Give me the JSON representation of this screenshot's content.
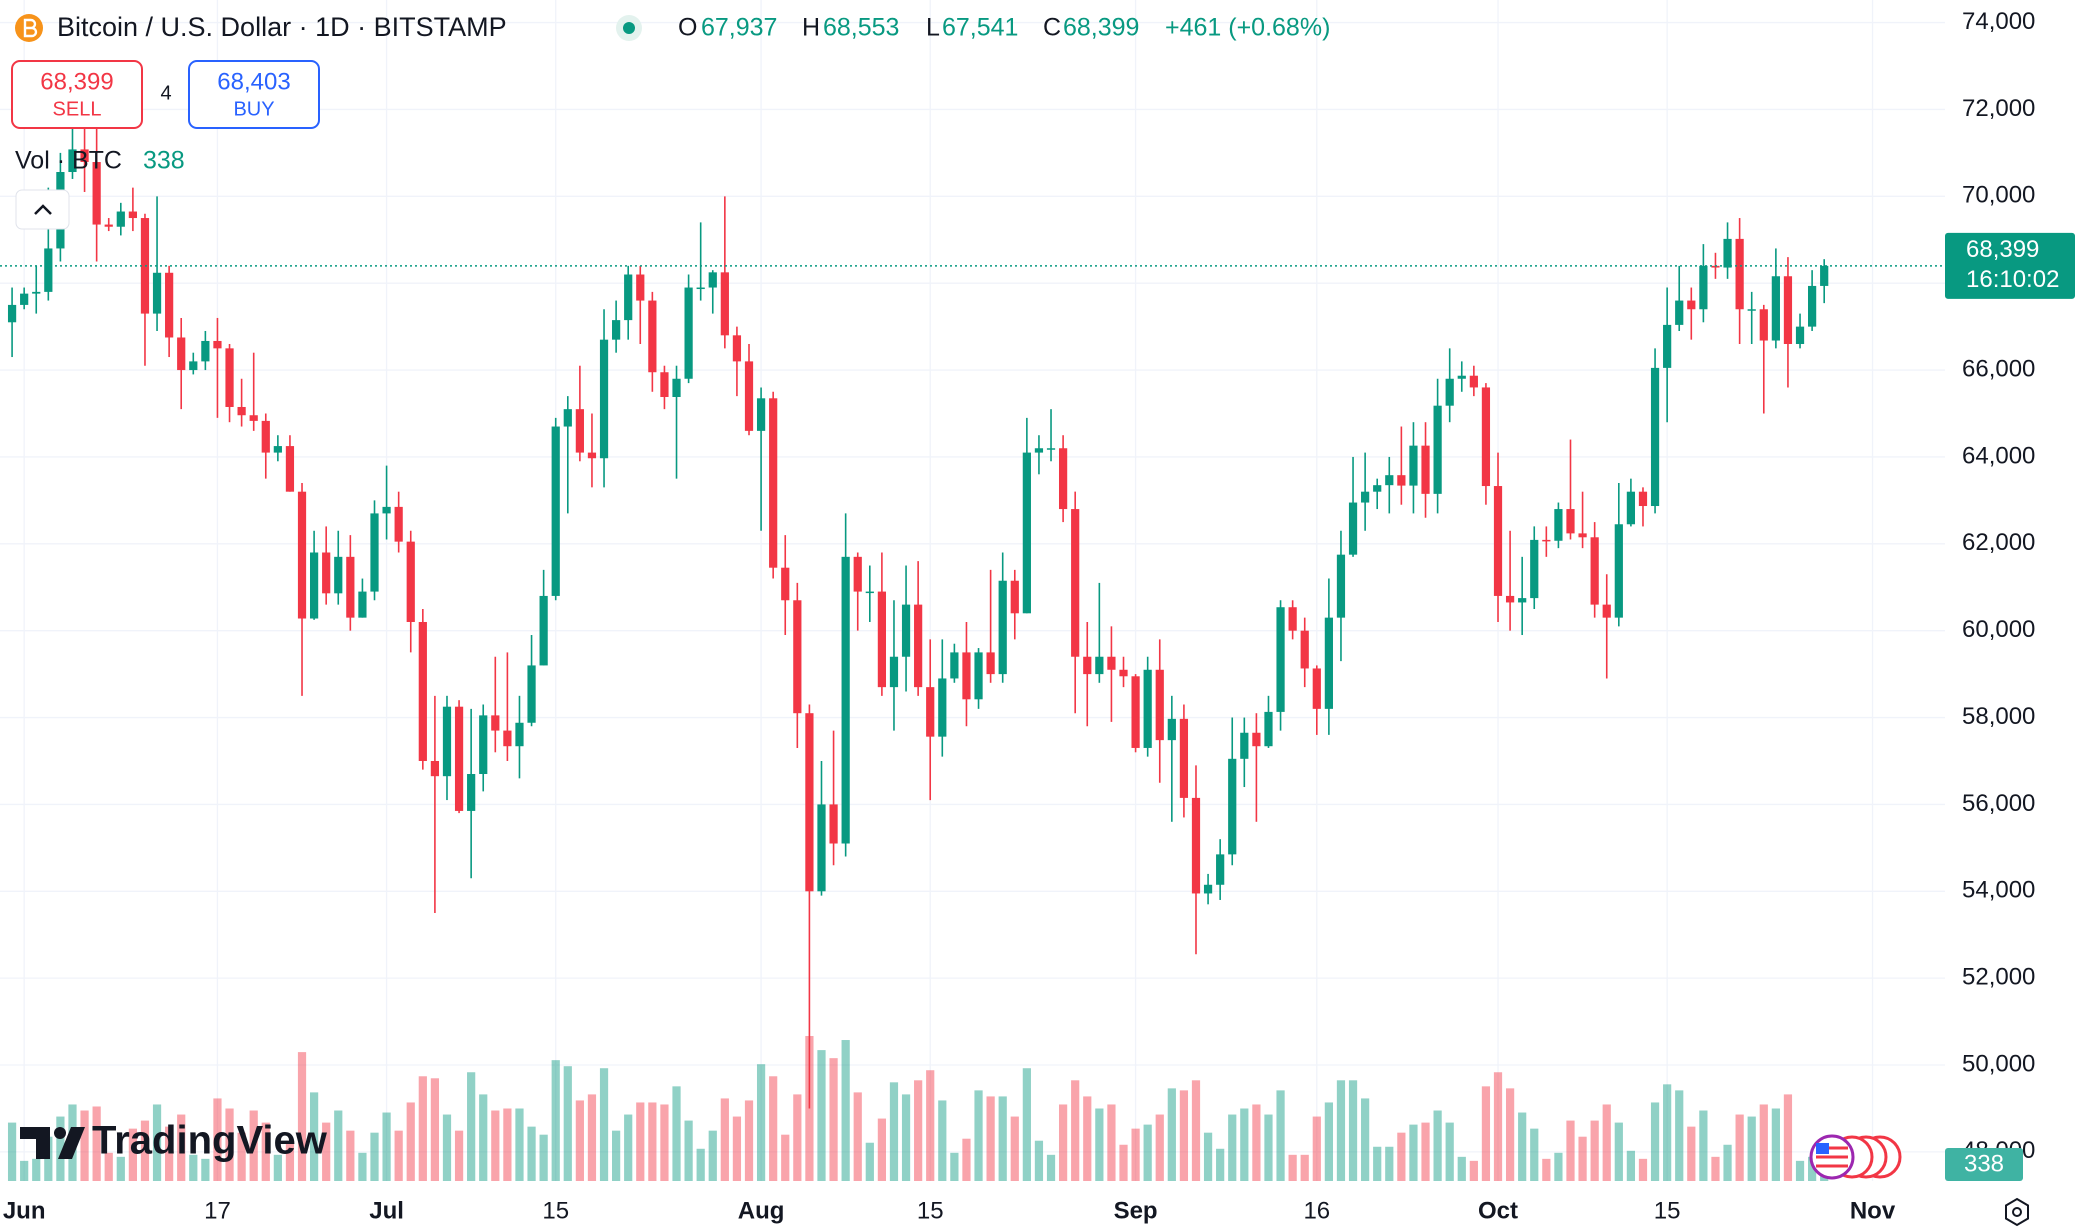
{
  "ui": {
    "title": "Bitcoin / U.S. Dollar · 1D · BITSTAMP",
    "ohlc": {
      "o_key": "O",
      "o": "67,937",
      "h_key": "H",
      "h": "68,553",
      "l_key": "L",
      "l": "67,541",
      "c_key": "C",
      "c": "68,399",
      "change": "+461 (+0.68%)"
    },
    "sell": {
      "price": "68,399",
      "label": "SELL"
    },
    "spread": "4",
    "buy": {
      "price": "68,403",
      "label": "BUY"
    },
    "volume_label": "Vol · BTC",
    "last_price": "68,399",
    "countdown": "16:10:02",
    "brand": "TradingView"
  },
  "chart_data": {
    "type": "candlestick",
    "x": [
      "05-31",
      "06-01",
      "06-02",
      "06-03",
      "06-04",
      "06-05",
      "06-06",
      "06-07",
      "06-08",
      "06-09",
      "06-10",
      "06-11",
      "06-12",
      "06-13",
      "06-14",
      "06-15",
      "06-16",
      "06-17",
      "06-18",
      "06-19",
      "06-20",
      "06-21",
      "06-22",
      "06-23",
      "06-24",
      "06-25",
      "06-26",
      "06-27",
      "06-28",
      "06-29",
      "06-30",
      "07-01",
      "07-02",
      "07-03",
      "07-04",
      "07-05",
      "07-06",
      "07-07",
      "07-08",
      "07-09",
      "07-10",
      "07-11",
      "07-12",
      "07-13",
      "07-14",
      "07-15",
      "07-16",
      "07-17",
      "07-18",
      "07-19",
      "07-20",
      "07-21",
      "07-22",
      "07-23",
      "07-24",
      "07-25",
      "07-26",
      "07-27",
      "07-28",
      "07-29",
      "07-30",
      "07-31",
      "08-01",
      "08-02",
      "08-03",
      "08-04",
      "08-05",
      "08-06",
      "08-07",
      "08-08",
      "08-09",
      "08-10",
      "08-11",
      "08-12",
      "08-13",
      "08-14",
      "08-15",
      "08-16",
      "08-17",
      "08-18",
      "08-19",
      "08-20",
      "08-21",
      "08-22",
      "08-23",
      "08-24",
      "08-25",
      "08-26",
      "08-27",
      "08-28",
      "08-29",
      "08-30",
      "08-31",
      "09-01",
      "09-02",
      "09-03",
      "09-04",
      "09-05",
      "09-06",
      "09-07",
      "09-08",
      "09-09",
      "09-10",
      "09-11",
      "09-12",
      "09-13",
      "09-14",
      "09-15",
      "09-16",
      "09-17",
      "09-18",
      "09-19",
      "09-20",
      "09-21",
      "09-22",
      "09-23",
      "09-24",
      "09-25",
      "09-26",
      "09-27",
      "09-28",
      "09-29",
      "09-30",
      "10-01",
      "10-02",
      "10-03",
      "10-04",
      "10-05",
      "10-06",
      "10-07",
      "10-08",
      "10-09",
      "10-10",
      "10-11",
      "10-12",
      "10-13",
      "10-14",
      "10-15",
      "10-16",
      "10-17",
      "10-18",
      "10-19",
      "10-20",
      "10-21",
      "10-22",
      "10-23",
      "10-24",
      "10-25",
      "10-26",
      "10-27",
      "10-28"
    ],
    "open": [
      67100,
      67500,
      67760,
      67800,
      68800,
      70560,
      71080,
      70790,
      69350,
      69300,
      69650,
      69500,
      67300,
      68240,
      66750,
      66000,
      66200,
      66670,
      66500,
      65150,
      64960,
      64830,
      64100,
      64250,
      63200,
      60280,
      61800,
      60860,
      61700,
      60300,
      60900,
      62700,
      62850,
      62050,
      60200,
      57000,
      56650,
      58250,
      55850,
      56700,
      58050,
      57700,
      57340,
      57880,
      59200,
      60800,
      64700,
      65100,
      64100,
      63970,
      66700,
      67150,
      68200,
      67600,
      65950,
      65380,
      65800,
      67900,
      67900,
      68250,
      66800,
      66200,
      64600,
      65350,
      61450,
      60700,
      58100,
      54000,
      56000,
      55100,
      61700,
      60900,
      60900,
      58700,
      59400,
      60600,
      58700,
      57560,
      58900,
      59500,
      58420,
      59500,
      59000,
      61150,
      60400,
      64100,
      64200,
      64200,
      62800,
      59400,
      59000,
      59400,
      59100,
      58950,
      57300,
      59100,
      57480,
      57970,
      56150,
      53950,
      54150,
      54850,
      57050,
      57650,
      57340,
      58130,
      60540,
      60000,
      59130,
      58200,
      60300,
      61750,
      62950,
      63200,
      63350,
      63580,
      63340,
      64260,
      63150,
      65180,
      65800,
      65870,
      65600,
      63330,
      60800,
      60650,
      60750,
      62090,
      62070,
      62800,
      62240,
      62150,
      60600,
      60300,
      62450,
      63200,
      62870,
      66050,
      67040,
      67600,
      67400,
      68400,
      68360,
      69020,
      67400,
      67400,
      66680,
      68160,
      66600,
      67000,
      67937
    ],
    "high": [
      67900,
      67900,
      68400,
      70200,
      71000,
      71750,
      71600,
      71950,
      69500,
      69850,
      70200,
      69600,
      70000,
      68400,
      67200,
      66400,
      66900,
      67200,
      66600,
      65800,
      66400,
      65000,
      64500,
      64500,
      63400,
      62300,
      62400,
      62300,
      62200,
      61200,
      63000,
      63800,
      63200,
      62300,
      60500,
      58500,
      58500,
      58400,
      58200,
      58300,
      59400,
      59500,
      58500,
      59900,
      61400,
      64900,
      65400,
      66100,
      65000,
      67400,
      67600,
      68400,
      68400,
      67800,
      66100,
      66100,
      68200,
      69400,
      68300,
      70000,
      67000,
      66600,
      65600,
      65500,
      62200,
      61100,
      58300,
      57000,
      57700,
      62700,
      61800,
      61500,
      61800,
      60700,
      61500,
      61600,
      59800,
      59800,
      59700,
      60200,
      59600,
      61400,
      61800,
      61400,
      64900,
      64500,
      65100,
      64500,
      63200,
      60200,
      61100,
      60100,
      59400,
      59000,
      59400,
      59800,
      58500,
      58300,
      56900,
      54400,
      55200,
      58000,
      58000,
      58100,
      58500,
      60700,
      60700,
      60300,
      59200,
      61200,
      62300,
      64000,
      64100,
      63500,
      64000,
      64700,
      64800,
      64800,
      65800,
      66500,
      66200,
      66100,
      65700,
      64100,
      62300,
      61700,
      62400,
      62400,
      62950,
      64400,
      63200,
      62500,
      61300,
      63400,
      63500,
      63300,
      66500,
      67900,
      68400,
      67900,
      68900,
      68700,
      69400,
      69500,
      67800,
      67500,
      68800,
      68600,
      67300,
      68300,
      68553
    ],
    "low": [
      66300,
      67400,
      67300,
      67600,
      68500,
      70400,
      70100,
      68500,
      69200,
      69100,
      69200,
      66100,
      66900,
      66300,
      65100,
      65900,
      66000,
      64900,
      64800,
      64700,
      64600,
      63500,
      63900,
      63200,
      58500,
      60250,
      60600,
      60600,
      60000,
      60300,
      60700,
      62100,
      61800,
      59500,
      56800,
      53500,
      56100,
      55800,
      54300,
      56300,
      57200,
      57000,
      56600,
      57800,
      59200,
      60700,
      62700,
      63900,
      63300,
      63300,
      66400,
      66700,
      66600,
      65500,
      65100,
      63500,
      65700,
      67600,
      67300,
      66500,
      65400,
      64500,
      62300,
      61200,
      59900,
      57300,
      49000,
      53900,
      54600,
      54800,
      60000,
      60200,
      58500,
      57700,
      58600,
      58500,
      56100,
      57100,
      58800,
      57800,
      58200,
      58800,
      58800,
      59800,
      60400,
      63600,
      63900,
      62500,
      58100,
      57800,
      58800,
      57900,
      58700,
      57200,
      57100,
      56500,
      55600,
      55700,
      52550,
      53700,
      53800,
      54600,
      56400,
      55600,
      57300,
      57700,
      59800,
      58700,
      57600,
      57600,
      59300,
      61700,
      62300,
      62800,
      62700,
      62900,
      62700,
      62600,
      62700,
      64800,
      65500,
      65400,
      62900,
      60200,
      60000,
      59900,
      60500,
      61700,
      61900,
      62100,
      61900,
      60300,
      58900,
      60100,
      62400,
      62400,
      62700,
      64800,
      66900,
      66700,
      67100,
      68100,
      68100,
      66600,
      66600,
      65000,
      66500,
      65600,
      66500,
      66900,
      67541
    ],
    "close": [
      67500,
      67760,
      67800,
      68800,
      70560,
      71080,
      70790,
      69350,
      69300,
      69650,
      69500,
      67300,
      68240,
      66750,
      66000,
      66200,
      66670,
      66500,
      65150,
      64960,
      64830,
      64100,
      64250,
      63200,
      60280,
      61800,
      60860,
      61700,
      60300,
      60900,
      62700,
      62850,
      62050,
      60200,
      57000,
      56650,
      58250,
      55850,
      56700,
      58050,
      57700,
      57340,
      57880,
      59200,
      60800,
      64700,
      65100,
      64100,
      63970,
      66700,
      67150,
      68200,
      67600,
      65950,
      65380,
      65800,
      67900,
      67900,
      68250,
      66800,
      66200,
      64600,
      65350,
      61450,
      60700,
      58100,
      54000,
      56000,
      55100,
      61700,
      60900,
      60900,
      58700,
      59400,
      60600,
      58700,
      57560,
      58900,
      59500,
      58420,
      59500,
      59000,
      61150,
      60400,
      64100,
      64200,
      64200,
      62800,
      59400,
      59000,
      59400,
      59100,
      58950,
      57300,
      59100,
      57480,
      57970,
      56150,
      53950,
      54150,
      54850,
      57050,
      57650,
      57340,
      58130,
      60540,
      60000,
      59130,
      58200,
      60300,
      61750,
      62950,
      63200,
      63350,
      63580,
      63340,
      64260,
      63150,
      65180,
      65800,
      65870,
      65600,
      63330,
      60800,
      60650,
      60750,
      62090,
      62070,
      62800,
      62240,
      62150,
      60600,
      60300,
      62450,
      63200,
      62870,
      66050,
      67040,
      67600,
      67400,
      68400,
      68360,
      69020,
      67400,
      67400,
      66680,
      68160,
      66600,
      67000,
      67937,
      68399
    ],
    "volume": [
      2900,
      1000,
      1100,
      2200,
      3200,
      3800,
      3500,
      3700,
      1400,
      1200,
      2600,
      3000,
      3800,
      2700,
      3300,
      1300,
      1100,
      4100,
      3600,
      2400,
      3500,
      2900,
      1300,
      2000,
      6400,
      4400,
      2900,
      3500,
      2500,
      1400,
      2400,
      3400,
      2500,
      3900,
      5200,
      5100,
      3300,
      2500,
      5400,
      4300,
      3500,
      3600,
      3600,
      2700,
      2300,
      6000,
      5700,
      4000,
      4300,
      5600,
      2500,
      3300,
      3900,
      3900,
      3800,
      4700,
      3000,
      1600,
      2500,
      4100,
      3200,
      4000,
      5800,
      5200,
      2300,
      4300,
      7200,
      6500,
      6100,
      7000,
      4400,
      1900,
      3100,
      4900,
      4300,
      5000,
      5500,
      4000,
      1400,
      2100,
      4500,
      4200,
      4200,
      3200,
      5600,
      2000,
      1300,
      3800,
      5000,
      4200,
      3600,
      3800,
      1800,
      2600,
      2800,
      3300,
      4600,
      4500,
      5000,
      2400,
      1600,
      3300,
      3600,
      3800,
      3300,
      4500,
      1300,
      1300,
      3200,
      3900,
      5000,
      5000,
      4100,
      1700,
      1700,
      2400,
      2800,
      2900,
      3500,
      2900,
      1200,
      1000,
      4700,
      5400,
      4600,
      3400,
      2600,
      1100,
      1400,
      3000,
      2200,
      3000,
      3800,
      2900,
      1500,
      1100,
      3900,
      4800,
      4500,
      2700,
      3500,
      1200,
      1800,
      3300,
      3200,
      3800,
      3600,
      4300,
      1000,
      1200,
      338
    ],
    "up_color": "#089981",
    "down_color": "#f23645",
    "xlim": [
      "05-30",
      "11-07"
    ],
    "xticks": [
      {
        "value": "06-01",
        "label": "Jun"
      },
      {
        "value": "06-17",
        "label": "17"
      },
      {
        "value": "07-01",
        "label": "Jul"
      },
      {
        "value": "07-15",
        "label": "15"
      },
      {
        "value": "08-01",
        "label": "Aug"
      },
      {
        "value": "08-15",
        "label": "15"
      },
      {
        "value": "09-01",
        "label": "Sep"
      },
      {
        "value": "09-16",
        "label": "16"
      },
      {
        "value": "10-01",
        "label": "Oct"
      },
      {
        "value": "10-15",
        "label": "15"
      },
      {
        "value": "11-01",
        "label": "Nov"
      }
    ],
    "ylim": [
      47330,
      74520
    ],
    "yticks": [
      {
        "value": 48000,
        "label": "48,000"
      },
      {
        "value": 50000,
        "label": "50,000"
      },
      {
        "value": 52000,
        "label": "52,000"
      },
      {
        "value": 54000,
        "label": "54,000"
      },
      {
        "value": 56000,
        "label": "56,000"
      },
      {
        "value": 58000,
        "label": "58,000"
      },
      {
        "value": 60000,
        "label": "60,000"
      },
      {
        "value": 62000,
        "label": "62,000"
      },
      {
        "value": 64000,
        "label": "64,000"
      },
      {
        "value": 66000,
        "label": "66,000"
      },
      {
        "value": 68000,
        "label": "68,000"
      },
      {
        "value": 70000,
        "label": "70,000"
      },
      {
        "value": 72000,
        "label": "72,000"
      },
      {
        "value": 74000,
        "label": "74,000"
      }
    ],
    "grid": true
  }
}
